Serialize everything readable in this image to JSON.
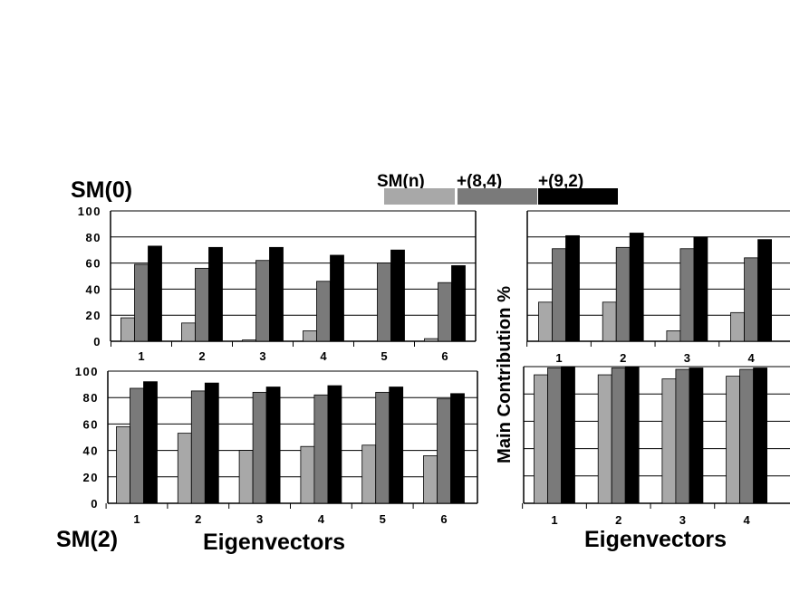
{
  "legend": {
    "title_parts": [
      "SM(n)",
      "+(8,4)",
      "+(9,2)"
    ],
    "colors": [
      "#a8a8a8",
      "#7a7a7a",
      "#000000"
    ]
  },
  "labels": {
    "top_left_title": "SM(0)",
    "bottom_left_title": "SM(2)",
    "y_axis_label": "Main Contribution %",
    "x_axis_left": "Eigenvectors",
    "x_axis_right": "Eigenvectors"
  },
  "chart_data": [
    {
      "type": "bar",
      "title": "SM(0)",
      "categories": [
        "1",
        "2",
        "3",
        "4",
        "5",
        "6"
      ],
      "ylim": [
        0,
        100
      ],
      "yticks": [
        "0",
        "20",
        "40",
        "60",
        "80",
        "100"
      ],
      "grid": true,
      "series": [
        {
          "name": "SM(n)",
          "values": [
            18,
            14,
            1,
            8,
            0,
            2
          ]
        },
        {
          "name": "+(8,4)",
          "values": [
            59,
            56,
            62,
            46,
            60,
            45
          ]
        },
        {
          "name": "+(9,2)",
          "values": [
            73,
            72,
            72,
            66,
            70,
            58
          ]
        }
      ]
    },
    {
      "type": "bar",
      "title": "SM(2)",
      "xlabel": "Eigenvectors",
      "categories": [
        "1",
        "2",
        "3",
        "4",
        "5",
        "6"
      ],
      "ylim": [
        0,
        100
      ],
      "yticks": [
        "0",
        "20",
        "40",
        "60",
        "80",
        "100"
      ],
      "grid": true,
      "series": [
        {
          "name": "SM(n)",
          "values": [
            58,
            53,
            40,
            43,
            44,
            36
          ]
        },
        {
          "name": "+(8,4)",
          "values": [
            87,
            85,
            84,
            82,
            84,
            79
          ]
        },
        {
          "name": "+(9,2)",
          "values": [
            92,
            91,
            88,
            89,
            88,
            83
          ]
        }
      ]
    },
    {
      "type": "bar",
      "categories": [
        "1",
        "2",
        "3",
        "4"
      ],
      "ylim": [
        0,
        100
      ],
      "grid": true,
      "series": [
        {
          "name": "SM(n)",
          "values": [
            30,
            30,
            8,
            22
          ]
        },
        {
          "name": "+(8,4)",
          "values": [
            71,
            72,
            71,
            64
          ]
        },
        {
          "name": "+(9,2)",
          "values": [
            81,
            83,
            80,
            78
          ]
        }
      ]
    },
    {
      "type": "bar",
      "xlabel": "Eigenvectors",
      "categories": [
        "1",
        "2",
        "3",
        "4"
      ],
      "ylim": [
        0,
        100
      ],
      "grid": true,
      "series": [
        {
          "name": "SM(n)",
          "values": [
            94,
            94,
            91,
            93
          ]
        },
        {
          "name": "+(8,4)",
          "values": [
            99,
            99,
            98,
            98
          ]
        },
        {
          "name": "+(9,2)",
          "values": [
            100,
            100,
            99,
            99
          ]
        }
      ]
    }
  ]
}
